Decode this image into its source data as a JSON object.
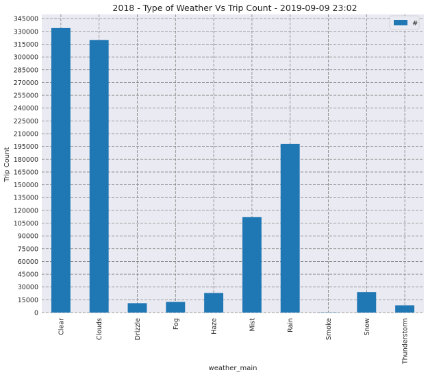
{
  "chart_data": {
    "type": "bar",
    "title": "2018 - Type of Weather Vs Trip Count - 2019-09-09 23:02",
    "xlabel": "weather_main",
    "ylabel": "Trip Count",
    "categories": [
      "Clear",
      "Clouds",
      "Drizzle",
      "Fog",
      "Haze",
      "Mist",
      "Rain",
      "Smoke",
      "Snow",
      "Thunderstorm"
    ],
    "series": [
      {
        "name": "#",
        "values": [
          334000,
          320000,
          11000,
          12500,
          23000,
          112000,
          198000,
          300,
          24000,
          8500
        ]
      }
    ],
    "ylim": [
      0,
      350000
    ],
    "yticks": [
      0,
      15000,
      30000,
      45000,
      60000,
      75000,
      90000,
      105000,
      120000,
      135000,
      150000,
      165000,
      180000,
      195000,
      210000,
      225000,
      240000,
      255000,
      270000,
      285000,
      300000,
      315000,
      330000,
      345000
    ],
    "grid": true,
    "legend_position": "top-right",
    "colors": {
      "bar": "#1f77b4",
      "background": "#eaeaf2",
      "grid": "#808080"
    }
  }
}
